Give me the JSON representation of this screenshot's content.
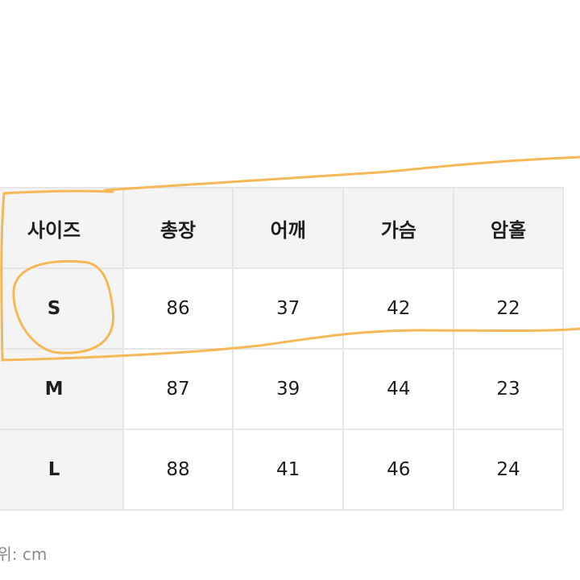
{
  "size_table": {
    "headers": [
      "사이즈",
      "총장",
      "어깨",
      "가슴",
      "암홀"
    ],
    "rows": [
      [
        "S",
        "86",
        "37",
        "42",
        "22"
      ],
      [
        "M",
        "87",
        "39",
        "44",
        "23"
      ],
      [
        "L",
        "88",
        "41",
        "46",
        "24"
      ]
    ]
  },
  "unit_note": "단위: cm",
  "annotation_color": "#f5b856"
}
